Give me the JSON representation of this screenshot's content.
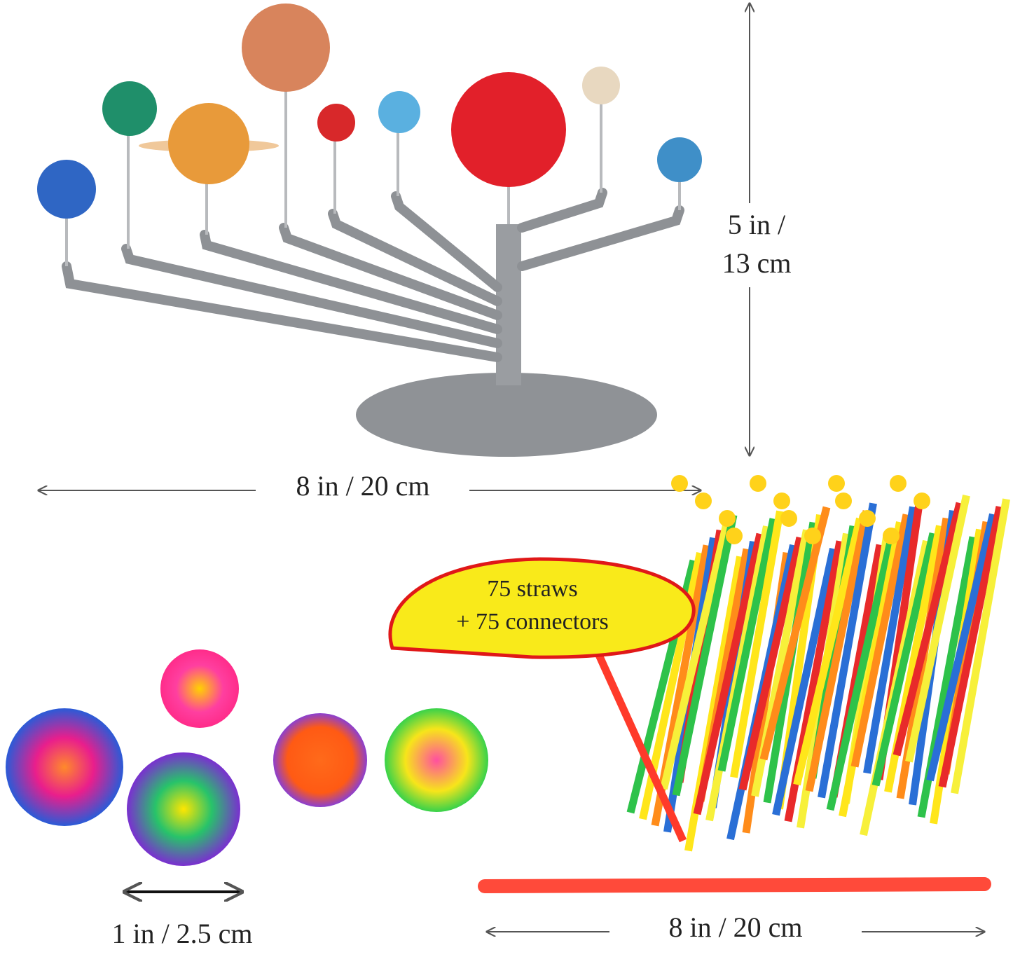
{
  "model_height": {
    "line1": "5 in /",
    "line2": "13 cm"
  },
  "model_width": "8 in / 20 cm",
  "bubble": {
    "line1": "75 straws",
    "line2": "+ 75 connectors"
  },
  "ball_size": "1 in / 2.5 cm",
  "straw_length": "8 in / 20 cm"
}
